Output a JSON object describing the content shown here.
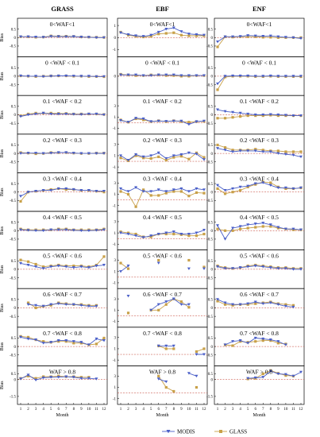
{
  "chart_data": {
    "type": "line",
    "columns": [
      "GRASS",
      "EBF",
      "ENF"
    ],
    "ylabel": "Bias",
    "xlabel": "Month",
    "x": [
      1,
      2,
      3,
      4,
      5,
      6,
      7,
      8,
      9,
      10,
      11,
      12
    ],
    "yticks_standard": [
      "0.5",
      "0",
      "-0.5"
    ],
    "yticks_ebf_top": [
      "1",
      "0",
      "-1"
    ],
    "yticks_ebf_rows": [
      "3",
      "1",
      "-1"
    ],
    "yticks_last": [
      "0.5",
      "0",
      "-1.5"
    ],
    "legend": [
      {
        "name": "MODIS",
        "color": "#4a5fc8",
        "marker": "triangle-down"
      },
      {
        "name": "GLASS",
        "color": "#c8a048",
        "marker": "square"
      }
    ],
    "zero_line": "dashed",
    "rows": [
      {
        "label": "0<WAF<1",
        "panels": [
          {
            "modis": [
              0.05,
              0.05,
              0.03,
              0.02,
              0.07,
              0.06,
              0.05,
              0.06,
              0.03,
              0.02,
              0.0,
              0.0
            ],
            "glass": [
              0.05,
              0.05,
              0.02,
              0.03,
              0.1,
              0.08,
              0.08,
              0.07,
              0.04,
              0.03,
              0.02,
              0.01
            ]
          },
          {
            "modis": [
              0.4,
              0.25,
              0.15,
              0.1,
              0.2,
              0.45,
              0.7,
              0.8,
              0.5,
              0.3,
              0.25,
              0.2
            ],
            "glass": [
              0.45,
              0.2,
              0.1,
              0.05,
              0.1,
              0.3,
              0.35,
              0.4,
              0.2,
              0.15,
              0.15,
              0.15
            ]
          },
          {
            "modis": [
              -0.25,
              0.05,
              0.05,
              0.07,
              0.12,
              0.1,
              0.08,
              0.1,
              0.05,
              0.02,
              0.0,
              -0.05
            ],
            "glass": [
              -0.55,
              0.05,
              0.03,
              0.05,
              0.05,
              0.05,
              0.02,
              0.02,
              0.0,
              0.0,
              0.0,
              0.0
            ]
          }
        ]
      },
      {
        "label": "0 <WAF < 0.1",
        "panels": [
          {
            "modis": [
              0.02,
              0.0,
              0.0,
              -0.02,
              0.0,
              0.02,
              0.02,
              0.01,
              0.0,
              0.0,
              -0.02,
              -0.02
            ],
            "glass": [
              0.02,
              0.0,
              -0.02,
              0.0,
              0.02,
              0.02,
              0.02,
              0.0,
              0.0,
              -0.02,
              -0.02,
              -0.03
            ]
          },
          {
            "modis": [
              0.1,
              0.1,
              0.1,
              0.05,
              0.05,
              0.1,
              0.1,
              0.1,
              0.05,
              0.05,
              0.05,
              0.05
            ],
            "glass": [
              0.15,
              0.1,
              0.05,
              0.05,
              0.1,
              0.1,
              0.05,
              0.05,
              0.0,
              0.0,
              0.05,
              0.05
            ]
          },
          {
            "modis": [
              -0.45,
              0.0,
              0.02,
              0.02,
              0.02,
              0.0,
              0.0,
              0.02,
              0.0,
              0.0,
              0.0,
              0.0
            ],
            "glass": [
              -0.8,
              -0.05,
              0.0,
              0.0,
              0.0,
              -0.02,
              -0.02,
              0.0,
              -0.02,
              -0.02,
              -0.02,
              -0.03
            ]
          }
        ]
      },
      {
        "label": "0.1 <WAF < 0.2",
        "panels": [
          {
            "modis": [
              -0.1,
              0.0,
              0.05,
              0.1,
              0.05,
              0.05,
              0.05,
              0.03,
              0.02,
              0.05,
              0.05,
              0.0
            ],
            "glass": [
              -0.05,
              0.05,
              0.1,
              0.1,
              0.1,
              0.08,
              0.08,
              0.05,
              0.05,
              0.05,
              0.05,
              0.02
            ]
          },
          {
            "modis": [
              0.4,
              0.1,
              0.8,
              0.7,
              0.2,
              0.3,
              0.25,
              0.3,
              0.3,
              -0.3,
              0.2,
              0.3
            ],
            "glass": [
              0.5,
              0.1,
              0.7,
              0.5,
              0.2,
              0.35,
              0.2,
              0.35,
              0.2,
              0.1,
              0.2,
              0.25
            ]
          },
          {
            "modis": [
              0.3,
              0.2,
              0.15,
              0.1,
              0.05,
              0.0,
              0.0,
              0.02,
              0.0,
              -0.02,
              -0.05,
              -0.05
            ],
            "glass": [
              -0.2,
              -0.2,
              -0.15,
              -0.1,
              -0.05,
              -0.05,
              -0.05,
              -0.02,
              -0.05,
              -0.05,
              -0.05,
              -0.05
            ]
          }
        ]
      },
      {
        "label": "0.2 <WAF < 0.3",
        "panels": [
          {
            "modis": [
              0.0,
              0.02,
              0.02,
              0.0,
              0.02,
              0.05,
              0.05,
              0.02,
              0.0,
              0.0,
              0.0,
              0.0
            ],
            "glass": [
              0.05,
              0.02,
              -0.02,
              0.0,
              0.05,
              0.05,
              0.05,
              0.02,
              0.0,
              0.0,
              0.02,
              0.02
            ]
          },
          {
            "modis": [
              1.0,
              0.2,
              1.2,
              0.8,
              1.0,
              1.5,
              0.5,
              1.0,
              1.2,
              1.5,
              1.3,
              0.3
            ],
            "glass": [
              0.6,
              0.1,
              1.0,
              0.6,
              0.5,
              0.8,
              0.2,
              0.7,
              0.9,
              0.4,
              1.5,
              0.7
            ]
          },
          {
            "modis": [
              0.3,
              0.2,
              0.1,
              0.15,
              0.15,
              0.15,
              0.1,
              0.1,
              0.0,
              -0.05,
              -0.1,
              -0.2
            ],
            "glass": [
              0.5,
              0.35,
              0.2,
              0.2,
              0.2,
              0.25,
              0.2,
              0.15,
              0.15,
              0.1,
              0.1,
              0.1
            ]
          }
        ]
      },
      {
        "label": "0.3 <WAF < 0.4",
        "panels": [
          {
            "modis": [
              -0.25,
              0.0,
              0.05,
              0.1,
              0.1,
              0.2,
              0.2,
              0.15,
              0.1,
              0.1,
              0.05,
              0.05
            ],
            "glass": [
              -0.55,
              0.0,
              0.05,
              0.1,
              0.15,
              0.2,
              0.15,
              0.15,
              0.1,
              0.1,
              0.05,
              0.0
            ]
          },
          {
            "modis": [
              2.0,
              1.5,
              2.2,
              1.5,
              1.5,
              1.8,
              1.5,
              1.8,
              2.0,
              1.5,
              2.0,
              1.8
            ],
            "glass": [
              1.5,
              1.0,
              -1.2,
              1.8,
              0.8,
              0.8,
              1.2,
              1.5,
              1.5,
              0.7,
              1.3,
              1.2
            ]
          },
          {
            "modis": [
              0.4,
              0.1,
              0.2,
              0.3,
              0.35,
              0.5,
              0.55,
              0.4,
              0.25,
              0.25,
              0.2,
              0.25
            ],
            "glass": [
              0.2,
              -0.1,
              0.0,
              0.1,
              0.3,
              0.45,
              0.6,
              0.55,
              0.3,
              0.2,
              0.2,
              0.25
            ]
          }
        ]
      },
      {
        "label": "0.4 <WAF < 0.5",
        "panels": [
          {
            "modis": [
              0.05,
              0.02,
              0.0,
              0.0,
              0.05,
              0.05,
              0.05,
              0.02,
              0.0,
              0.0,
              0.02,
              0.05
            ],
            "glass": [
              0.1,
              0.05,
              0.05,
              0.05,
              0.05,
              0.1,
              0.1,
              0.05,
              0.05,
              0.05,
              0.05,
              0.1
            ]
          },
          {
            "modis": [
              1.0,
              0.8,
              0.5,
              0.2,
              0.5,
              0.8,
              1.0,
              1.2,
              0.8,
              0.8,
              1.0,
              1.5
            ],
            "glass": [
              1.2,
              1.0,
              0.8,
              0.3,
              0.3,
              0.8,
              0.8,
              0.8,
              0.7,
              0.5,
              0.5,
              0.8
            ]
          },
          {
            "modis": [
              0.3,
              -0.5,
              0.15,
              0.25,
              0.35,
              0.4,
              0.45,
              0.35,
              0.2,
              0.1,
              0.1,
              0.05
            ],
            "glass": [
              0.1,
              0.0,
              0.0,
              0.1,
              0.15,
              0.2,
              0.25,
              0.25,
              0.15,
              0.1,
              0.05,
              0.05
            ]
          }
        ]
      },
      {
        "label": "0.5 <WAF < 0.6",
        "panels": [
          {
            "modis": [
              0.35,
              0.25,
              0.15,
              0.05,
              0.15,
              0.2,
              0.15,
              0.1,
              0.15,
              0.1,
              0.2,
              0.25
            ],
            "glass": [
              0.55,
              0.45,
              0.3,
              0.15,
              0.2,
              0.25,
              0.2,
              0.2,
              0.2,
              0.15,
              0.25,
              0.75
            ]
          },
          {
            "modis": [
              1.0,
              2.0,
              null,
              null,
              null,
              2.5,
              null,
              null,
              null,
              1.5,
              null,
              1.5
            ],
            "glass": [
              2.5,
              1.5,
              null,
              null,
              null,
              3.0,
              null,
              null,
              null,
              3.0,
              null,
              1.8
            ]
          },
          {
            "modis": [
              0.15,
              0.05,
              0.05,
              0.1,
              0.15,
              0.2,
              0.15,
              0.1,
              0.05,
              0.05,
              0.0,
              0.0
            ],
            "glass": [
              0.2,
              0.1,
              0.05,
              0.1,
              0.2,
              0.25,
              0.2,
              0.15,
              0.1,
              0.1,
              0.05,
              0.05
            ]
          }
        ]
      },
      {
        "label": "0.6 <WAF < 0.7",
        "panels": [
          {
            "modis": [
              null,
              0.2,
              0.15,
              0.1,
              0.2,
              0.25,
              0.2,
              0.2,
              0.15,
              0.1,
              0.1,
              null
            ],
            "glass": [
              null,
              0.3,
              0.0,
              0.1,
              0.15,
              0.3,
              0.25,
              0.2,
              0.2,
              0.15,
              0.15,
              null
            ]
          },
          {
            "modis": [
              null,
              3.5,
              null,
              null,
              1.0,
              2.0,
              2.5,
              3.0,
              2.0,
              2.0,
              null,
              null
            ],
            "glass": [
              null,
              0.5,
              null,
              null,
              1.0,
              1.0,
              2.0,
              3.0,
              2.5,
              1.5,
              null,
              null
            ]
          },
          {
            "modis": [
              0.5,
              0.3,
              0.2,
              0.2,
              0.25,
              0.35,
              0.25,
              0.3,
              0.2,
              0.1,
              0.05,
              null
            ],
            "glass": [
              0.4,
              0.2,
              0.15,
              0.2,
              0.2,
              0.25,
              0.3,
              0.35,
              0.25,
              0.2,
              0.15,
              null
            ]
          }
        ]
      },
      {
        "label": "0.7 <WAF < 0.8",
        "panels": [
          {
            "modis": [
              0.55,
              0.45,
              0.4,
              0.2,
              0.25,
              0.35,
              0.35,
              0.3,
              0.25,
              0.1,
              0.45,
              0.35
            ],
            "glass": [
              0.6,
              0.55,
              0.4,
              0.3,
              0.25,
              0.3,
              0.3,
              0.2,
              0.2,
              0.1,
              0.15,
              0.5
            ]
          },
          {
            "modis": [
              null,
              null,
              null,
              null,
              null,
              1.5,
              1.5,
              1.5,
              null,
              null,
              0.0,
              0.0
            ],
            "glass": [
              null,
              null,
              null,
              null,
              null,
              1.5,
              1.0,
              1.0,
              null,
              null,
              0.5,
              1.0
            ]
          },
          {
            "modis": [
              null,
              0.1,
              0.3,
              0.35,
              0.2,
              0.5,
              0.45,
              0.4,
              0.3,
              0.1,
              null,
              null
            ],
            "glass": [
              null,
              0.1,
              0.05,
              0.3,
              0.25,
              0.3,
              0.35,
              0.35,
              0.2,
              0.15,
              null,
              null
            ]
          }
        ]
      },
      {
        "label": "WAF > 0.8",
        "panels": [
          {
            "modis": [
              0.05,
              0.4,
              -0.05,
              0.15,
              0.2,
              0.2,
              0.25,
              0.2,
              0.1,
              0.1,
              0.05,
              null
            ],
            "glass": [
              0.1,
              0.3,
              0.1,
              0.25,
              0.25,
              0.3,
              0.25,
              0.25,
              0.2,
              0.2,
              null,
              null
            ]
          },
          {
            "modis": [
              null,
              null,
              null,
              null,
              null,
              2.5,
              2.0,
              null,
              null,
              3.5,
              3.0,
              null
            ],
            "glass": [
              null,
              null,
              null,
              null,
              null,
              3.0,
              1.0,
              0.3,
              null,
              null,
              1.0,
              null
            ]
          },
          {
            "modis": [
              null,
              null,
              null,
              null,
              0.1,
              0.15,
              0.2,
              0.75,
              0.5,
              0.45,
              0.3,
              0.65
            ],
            "glass": [
              null,
              null,
              null,
              null,
              0.05,
              0.1,
              0.5,
              0.8,
              0.55,
              0.35,
              0.3,
              null
            ]
          }
        ]
      }
    ]
  }
}
